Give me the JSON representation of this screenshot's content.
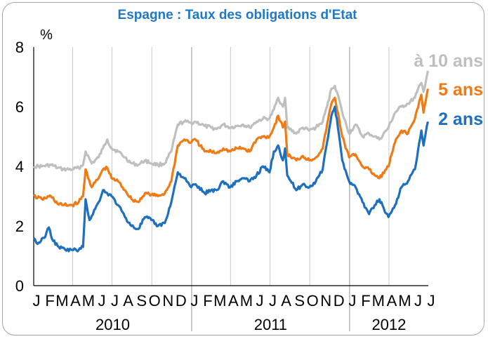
{
  "chart_data": {
    "type": "line",
    "title": "Espagne : Taux des obligations d'Etat",
    "y_unit": "%",
    "ylim": [
      0,
      8
    ],
    "y_ticks": [
      "0",
      "2",
      "4",
      "6",
      "8"
    ],
    "xlim": [
      "2010-01-01",
      "2012-07-01"
    ],
    "x_month_labels": [
      "J",
      "F",
      "M",
      "A",
      "M",
      "J",
      "J",
      "A",
      "S",
      "O",
      "N",
      "D",
      "J",
      "F",
      "M",
      "A",
      "M",
      "J",
      "J",
      "A",
      "S",
      "O",
      "N",
      "D",
      "J",
      "F",
      "M",
      "A",
      "M",
      "J",
      "J"
    ],
    "x_year_labels": [
      "2010",
      "2011",
      "2012"
    ],
    "grid": "vertical",
    "legend_placement": "top-right",
    "series": [
      {
        "name": "à 10 ans",
        "color": "#bfbfbf",
        "points": [
          [
            "2010-01-01",
            4.0
          ],
          [
            "2010-01-20",
            4.0
          ],
          [
            "2010-02-10",
            4.05
          ],
          [
            "2010-02-25",
            3.95
          ],
          [
            "2010-03-10",
            3.9
          ],
          [
            "2010-03-31",
            3.9
          ],
          [
            "2010-04-15",
            3.95
          ],
          [
            "2010-04-25",
            4.05
          ],
          [
            "2010-05-01",
            4.5
          ],
          [
            "2010-05-15",
            4.1
          ],
          [
            "2010-05-31",
            4.3
          ],
          [
            "2010-06-10",
            4.6
          ],
          [
            "2010-06-20",
            4.9
          ],
          [
            "2010-06-30",
            4.6
          ],
          [
            "2010-07-15",
            4.5
          ],
          [
            "2010-07-31",
            4.3
          ],
          [
            "2010-08-15",
            4.1
          ],
          [
            "2010-08-31",
            4.05
          ],
          [
            "2010-09-15",
            4.2
          ],
          [
            "2010-09-30",
            4.1
          ],
          [
            "2010-10-15",
            4.05
          ],
          [
            "2010-10-31",
            4.1
          ],
          [
            "2010-11-15",
            4.5
          ],
          [
            "2010-11-30",
            5.4
          ],
          [
            "2010-12-15",
            5.5
          ],
          [
            "2010-12-31",
            5.45
          ],
          [
            "2011-01-10",
            5.5
          ],
          [
            "2011-01-31",
            5.35
          ],
          [
            "2011-02-15",
            5.3
          ],
          [
            "2011-02-28",
            5.25
          ],
          [
            "2011-03-15",
            5.4
          ],
          [
            "2011-03-31",
            5.3
          ],
          [
            "2011-04-15",
            5.35
          ],
          [
            "2011-04-30",
            5.4
          ],
          [
            "2011-05-15",
            5.3
          ],
          [
            "2011-05-31",
            5.5
          ],
          [
            "2011-06-15",
            5.6
          ],
          [
            "2011-06-30",
            5.6
          ],
          [
            "2011-07-10",
            5.9
          ],
          [
            "2011-07-20",
            6.3
          ],
          [
            "2011-07-31",
            6.0
          ],
          [
            "2011-08-05",
            6.3
          ],
          [
            "2011-08-10",
            5.3
          ],
          [
            "2011-08-31",
            5.1
          ],
          [
            "2011-09-15",
            5.3
          ],
          [
            "2011-09-30",
            5.2
          ],
          [
            "2011-10-15",
            5.3
          ],
          [
            "2011-10-31",
            5.5
          ],
          [
            "2011-11-10",
            6.0
          ],
          [
            "2011-11-20",
            6.6
          ],
          [
            "2011-11-28",
            6.7
          ],
          [
            "2011-12-05",
            6.4
          ],
          [
            "2011-12-15",
            5.8
          ],
          [
            "2011-12-31",
            5.1
          ],
          [
            "2012-01-15",
            5.4
          ],
          [
            "2012-01-31",
            5.0
          ],
          [
            "2012-02-15",
            5.1
          ],
          [
            "2012-02-28",
            5.0
          ],
          [
            "2012-03-10",
            4.9
          ],
          [
            "2012-03-31",
            5.3
          ],
          [
            "2012-04-15",
            5.8
          ],
          [
            "2012-04-30",
            6.0
          ],
          [
            "2012-05-15",
            6.1
          ],
          [
            "2012-05-31",
            6.3
          ],
          [
            "2012-06-05",
            6.5
          ],
          [
            "2012-06-15",
            6.8
          ],
          [
            "2012-06-20",
            6.5
          ],
          [
            "2012-06-30",
            7.2
          ]
        ]
      },
      {
        "name": "5 ans",
        "color": "#f07a14",
        "points": [
          [
            "2010-01-01",
            3.0
          ],
          [
            "2010-01-20",
            2.9
          ],
          [
            "2010-02-10",
            3.0
          ],
          [
            "2010-02-25",
            2.75
          ],
          [
            "2010-03-10",
            2.7
          ],
          [
            "2010-03-31",
            2.7
          ],
          [
            "2010-04-15",
            2.8
          ],
          [
            "2010-04-25",
            3.0
          ],
          [
            "2010-05-01",
            3.9
          ],
          [
            "2010-05-15",
            3.3
          ],
          [
            "2010-05-31",
            3.6
          ],
          [
            "2010-06-10",
            3.9
          ],
          [
            "2010-06-20",
            3.95
          ],
          [
            "2010-06-30",
            3.6
          ],
          [
            "2010-07-15",
            3.5
          ],
          [
            "2010-07-31",
            3.2
          ],
          [
            "2010-08-15",
            2.9
          ],
          [
            "2010-08-31",
            2.8
          ],
          [
            "2010-09-15",
            3.1
          ],
          [
            "2010-09-30",
            3.05
          ],
          [
            "2010-10-15",
            3.0
          ],
          [
            "2010-10-31",
            3.1
          ],
          [
            "2010-11-15",
            3.5
          ],
          [
            "2010-11-30",
            4.7
          ],
          [
            "2010-12-15",
            4.9
          ],
          [
            "2010-12-31",
            4.8
          ],
          [
            "2011-01-10",
            4.9
          ],
          [
            "2011-01-31",
            4.5
          ],
          [
            "2011-02-15",
            4.5
          ],
          [
            "2011-02-28",
            4.45
          ],
          [
            "2011-03-15",
            4.6
          ],
          [
            "2011-03-31",
            4.5
          ],
          [
            "2011-04-15",
            4.6
          ],
          [
            "2011-04-30",
            4.6
          ],
          [
            "2011-05-15",
            4.5
          ],
          [
            "2011-05-31",
            4.9
          ],
          [
            "2011-06-15",
            5.0
          ],
          [
            "2011-06-30",
            5.0
          ],
          [
            "2011-07-10",
            5.3
          ],
          [
            "2011-07-20",
            5.7
          ],
          [
            "2011-07-31",
            5.3
          ],
          [
            "2011-08-05",
            5.5
          ],
          [
            "2011-08-10",
            4.4
          ],
          [
            "2011-08-31",
            4.2
          ],
          [
            "2011-09-15",
            4.35
          ],
          [
            "2011-09-30",
            4.2
          ],
          [
            "2011-10-15",
            4.3
          ],
          [
            "2011-10-31",
            4.6
          ],
          [
            "2011-11-10",
            5.4
          ],
          [
            "2011-11-20",
            6.1
          ],
          [
            "2011-11-28",
            6.3
          ],
          [
            "2011-12-05",
            5.8
          ],
          [
            "2011-12-15",
            5.0
          ],
          [
            "2011-12-31",
            4.3
          ],
          [
            "2012-01-15",
            4.4
          ],
          [
            "2012-01-31",
            4.0
          ],
          [
            "2012-02-15",
            3.9
          ],
          [
            "2012-02-28",
            3.7
          ],
          [
            "2012-03-10",
            3.6
          ],
          [
            "2012-03-31",
            4.0
          ],
          [
            "2012-04-15",
            4.8
          ],
          [
            "2012-04-30",
            5.2
          ],
          [
            "2012-05-15",
            5.1
          ],
          [
            "2012-05-31",
            5.6
          ],
          [
            "2012-06-05",
            5.9
          ],
          [
            "2012-06-15",
            6.4
          ],
          [
            "2012-06-20",
            5.8
          ],
          [
            "2012-06-30",
            6.6
          ]
        ]
      },
      {
        "name": "2 ans",
        "color": "#1f6fbf",
        "points": [
          [
            "2010-01-01",
            1.6
          ],
          [
            "2010-01-10",
            1.4
          ],
          [
            "2010-01-25",
            1.6
          ],
          [
            "2010-02-05",
            1.95
          ],
          [
            "2010-02-15",
            1.5
          ],
          [
            "2010-02-28",
            1.3
          ],
          [
            "2010-03-15",
            1.2
          ],
          [
            "2010-03-31",
            1.2
          ],
          [
            "2010-04-15",
            1.2
          ],
          [
            "2010-04-25",
            1.3
          ],
          [
            "2010-05-01",
            2.9
          ],
          [
            "2010-05-10",
            2.2
          ],
          [
            "2010-05-31",
            2.8
          ],
          [
            "2010-06-10",
            3.2
          ],
          [
            "2010-06-20",
            3.1
          ],
          [
            "2010-06-30",
            3.0
          ],
          [
            "2010-07-15",
            2.7
          ],
          [
            "2010-07-31",
            2.3
          ],
          [
            "2010-08-15",
            2.0
          ],
          [
            "2010-08-31",
            1.9
          ],
          [
            "2010-09-15",
            2.3
          ],
          [
            "2010-09-30",
            2.2
          ],
          [
            "2010-10-15",
            2.0
          ],
          [
            "2010-10-31",
            2.1
          ],
          [
            "2010-11-15",
            2.8
          ],
          [
            "2010-11-30",
            3.8
          ],
          [
            "2010-12-15",
            3.6
          ],
          [
            "2010-12-31",
            3.3
          ],
          [
            "2011-01-10",
            3.4
          ],
          [
            "2011-01-31",
            3.1
          ],
          [
            "2011-02-15",
            3.2
          ],
          [
            "2011-02-28",
            3.2
          ],
          [
            "2011-03-15",
            3.5
          ],
          [
            "2011-03-31",
            3.3
          ],
          [
            "2011-04-15",
            3.5
          ],
          [
            "2011-04-30",
            3.6
          ],
          [
            "2011-05-15",
            3.5
          ],
          [
            "2011-05-31",
            3.7
          ],
          [
            "2011-06-15",
            4.0
          ],
          [
            "2011-06-30",
            3.8
          ],
          [
            "2011-07-10",
            4.5
          ],
          [
            "2011-07-20",
            4.7
          ],
          [
            "2011-07-31",
            4.2
          ],
          [
            "2011-08-05",
            4.6
          ],
          [
            "2011-08-10",
            3.7
          ],
          [
            "2011-08-31",
            3.2
          ],
          [
            "2011-09-15",
            3.4
          ],
          [
            "2011-09-30",
            3.3
          ],
          [
            "2011-10-15",
            3.5
          ],
          [
            "2011-10-31",
            3.9
          ],
          [
            "2011-11-10",
            4.8
          ],
          [
            "2011-11-20",
            5.7
          ],
          [
            "2011-11-28",
            6.0
          ],
          [
            "2011-12-05",
            5.3
          ],
          [
            "2011-12-15",
            4.2
          ],
          [
            "2011-12-31",
            3.5
          ],
          [
            "2012-01-15",
            3.3
          ],
          [
            "2012-01-31",
            2.8
          ],
          [
            "2012-02-15",
            2.4
          ],
          [
            "2012-02-28",
            2.7
          ],
          [
            "2012-03-10",
            2.9
          ],
          [
            "2012-03-20",
            2.6
          ],
          [
            "2012-03-31",
            2.3
          ],
          [
            "2012-04-15",
            2.7
          ],
          [
            "2012-04-30",
            3.3
          ],
          [
            "2012-05-15",
            3.5
          ],
          [
            "2012-05-31",
            3.9
          ],
          [
            "2012-06-05",
            4.3
          ],
          [
            "2012-06-15",
            5.2
          ],
          [
            "2012-06-20",
            4.7
          ],
          [
            "2012-06-30",
            5.5
          ]
        ]
      }
    ]
  }
}
